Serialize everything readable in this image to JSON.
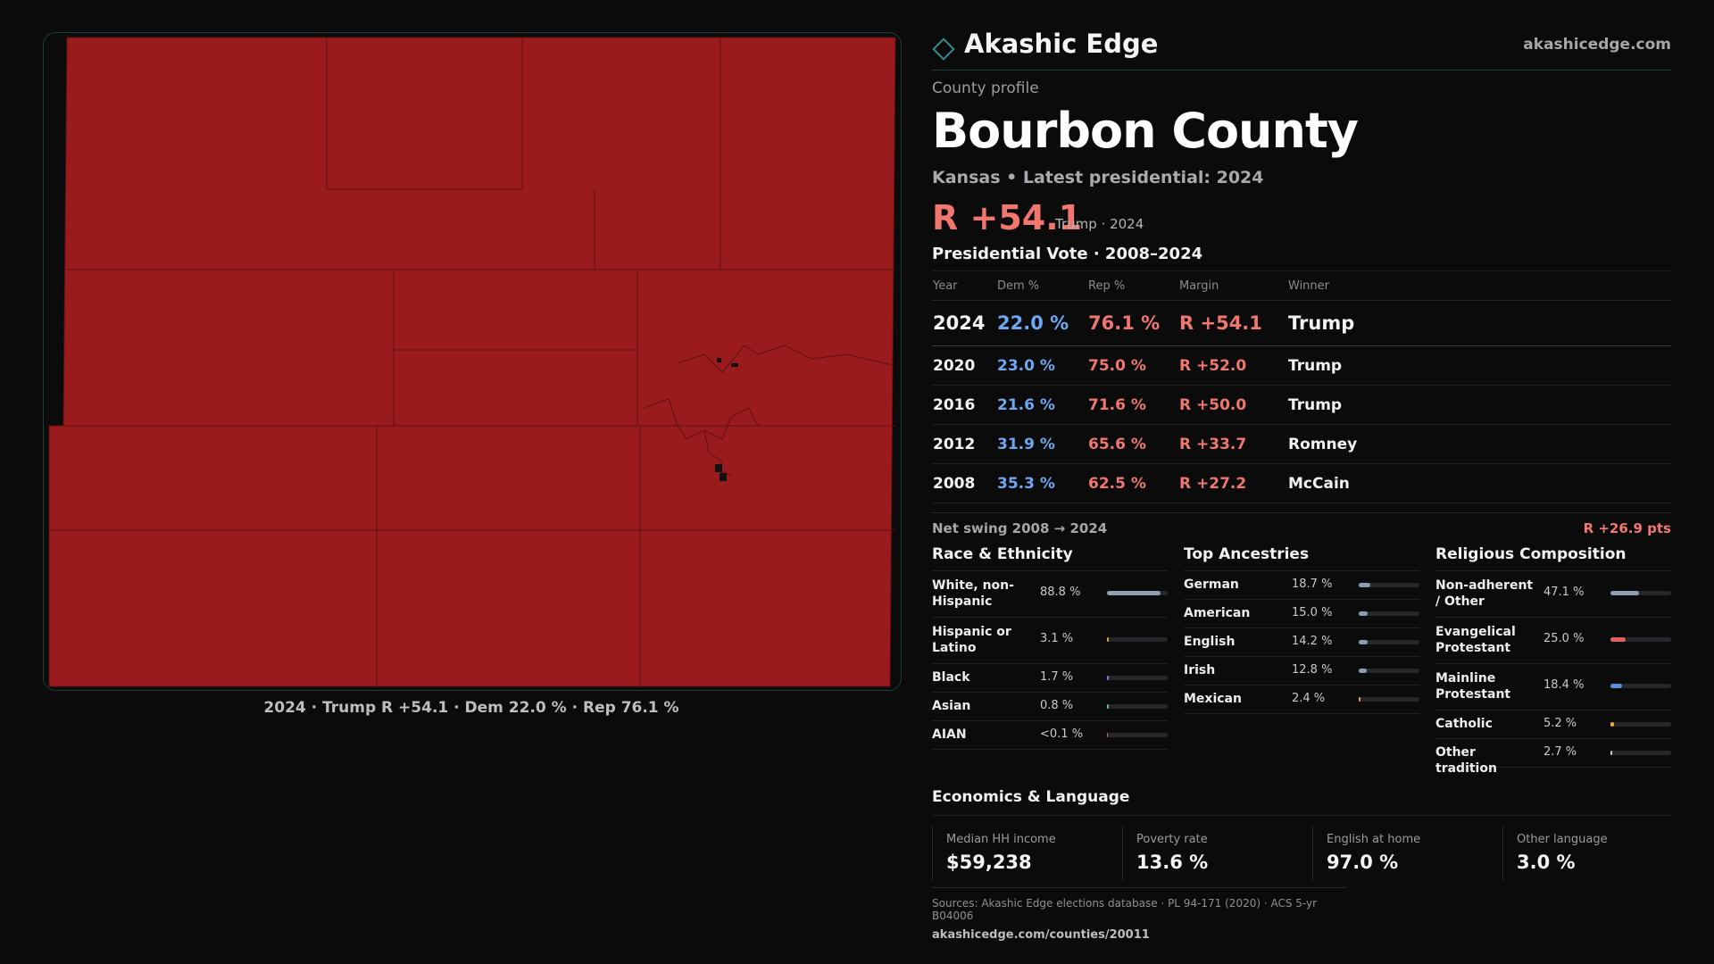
{
  "brand": {
    "name": "Akashic Edge",
    "url": "akashicedge.com"
  },
  "profile": {
    "kicker": "County profile",
    "title": "Bourbon County",
    "subtitle": "Kansas • Latest presidential: 2024",
    "headline_margin": "R +54.1",
    "headline_note": "Trump · 2024"
  },
  "map": {
    "caption": "2024 · Trump R +54.1 · Dem 22.0 % · Rep 76.1 %",
    "fill_color": "#9a1b1e",
    "line_color": "#5e1012"
  },
  "vote": {
    "title": "Presidential Vote · 2008–2024",
    "headers": {
      "year": "Year",
      "dem": "Dem %",
      "rep": "Rep %",
      "margin": "Margin",
      "winner": "Winner"
    },
    "rows": [
      {
        "year": "2024",
        "dem": "22.0 %",
        "rep": "76.1 %",
        "margin": "R +54.1",
        "winner": "Trump"
      },
      {
        "year": "2020",
        "dem": "23.0 %",
        "rep": "75.0 %",
        "margin": "R +52.0",
        "winner": "Trump"
      },
      {
        "year": "2016",
        "dem": "21.6 %",
        "rep": "71.6 %",
        "margin": "R +50.0",
        "winner": "Trump"
      },
      {
        "year": "2012",
        "dem": "31.9 %",
        "rep": "65.6 %",
        "margin": "R +33.7",
        "winner": "Romney"
      },
      {
        "year": "2008",
        "dem": "35.3 %",
        "rep": "62.5 %",
        "margin": "R +27.2",
        "winner": "McCain"
      }
    ],
    "swing_label": "Net swing 2008 → 2024",
    "swing_value": "R +26.9 pts"
  },
  "race": {
    "title": "Race & Ethnicity",
    "items": [
      {
        "label": "White, non-Hispanic",
        "value": "88.8 %",
        "share": 0.888,
        "color": "#8f9db0"
      },
      {
        "label": "Hispanic or Latino",
        "value": "3.1 %",
        "share": 0.031,
        "color": "#e0a23a"
      },
      {
        "label": "Black",
        "value": "1.7 %",
        "share": 0.017,
        "color": "#8a7ae0"
      },
      {
        "label": "Asian",
        "value": "0.8 %",
        "share": 0.008,
        "color": "#5cc0a0"
      },
      {
        "label": "AIAN",
        "value": "<0.1 %",
        "share": 0.0,
        "color": "#d26a6a"
      }
    ]
  },
  "ancestry": {
    "title": "Top Ancestries",
    "items": [
      {
        "label": "German",
        "value": "18.7 %",
        "share": 0.187,
        "color": "#8f9db0"
      },
      {
        "label": "American",
        "value": "15.0 %",
        "share": 0.15,
        "color": "#8f9db0"
      },
      {
        "label": "English",
        "value": "14.2 %",
        "share": 0.142,
        "color": "#8f9db0"
      },
      {
        "label": "Irish",
        "value": "12.8 %",
        "share": 0.128,
        "color": "#8f9db0"
      },
      {
        "label": "Mexican",
        "value": "2.4 %",
        "share": 0.024,
        "color": "#e0a23a"
      }
    ]
  },
  "religion": {
    "title": "Religious Composition",
    "items": [
      {
        "label": "Non-adherent / Other",
        "value": "47.1 %",
        "share": 0.471,
        "color": "#8f9db0"
      },
      {
        "label": "Evangelical Protestant",
        "value": "25.0 %",
        "share": 0.25,
        "color": "#e06060"
      },
      {
        "label": "Mainline Protestant",
        "value": "18.4 %",
        "share": 0.184,
        "color": "#5a8fe0"
      },
      {
        "label": "Catholic",
        "value": "5.2 %",
        "share": 0.052,
        "color": "#e0b03a"
      },
      {
        "label": "Other tradition",
        "value": "2.7 %",
        "share": 0.027,
        "color": "#c9c9ce"
      }
    ]
  },
  "econ": {
    "title": "Economics & Language",
    "cards": [
      {
        "label": "Median HH income",
        "value": "$59,238"
      },
      {
        "label": "Poverty rate",
        "value": "13.6 %"
      },
      {
        "label": "English at home",
        "value": "97.0 %"
      },
      {
        "label": "Other language",
        "value": "3.0 %"
      }
    ]
  },
  "sources": {
    "line1": "Sources: Akashic Edge elections database · PL 94-171 (2020) · ACS 5-yr B04006",
    "line2": "akashicedge.com/counties/20011"
  }
}
